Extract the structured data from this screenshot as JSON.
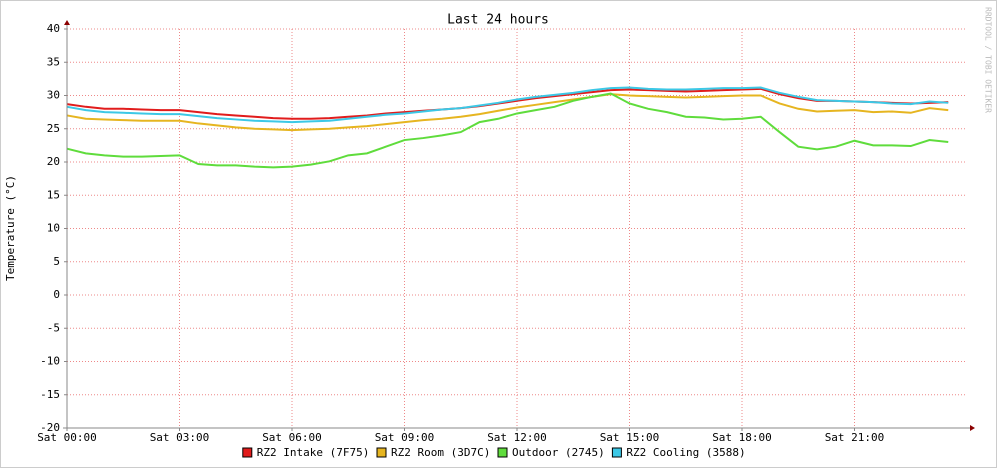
{
  "chart_data": {
    "type": "line",
    "title": "Last 24 hours",
    "ylabel": "Temperature (°C)",
    "watermark": "RRDTOOL / TOBI OETIKER",
    "grid": true,
    "xlim": [
      0,
      24
    ],
    "xticks": [
      {
        "value": 0,
        "label": "Sat 00:00"
      },
      {
        "value": 3,
        "label": "Sat 03:00"
      },
      {
        "value": 6,
        "label": "Sat 06:00"
      },
      {
        "value": 9,
        "label": "Sat 09:00"
      },
      {
        "value": 12,
        "label": "Sat 12:00"
      },
      {
        "value": 15,
        "label": "Sat 15:00"
      },
      {
        "value": 18,
        "label": "Sat 18:00"
      },
      {
        "value": 21,
        "label": "Sat 21:00"
      }
    ],
    "ylim": [
      -20,
      40
    ],
    "yticks": [
      -20,
      -15,
      -10,
      -5,
      0,
      5,
      10,
      15,
      20,
      25,
      30,
      35,
      40
    ],
    "x": [
      0,
      0.5,
      1,
      1.5,
      2,
      2.5,
      3,
      3.5,
      4,
      4.5,
      5,
      5.5,
      6,
      6.5,
      7,
      7.5,
      8,
      8.5,
      9,
      9.5,
      10,
      10.5,
      11,
      11.5,
      12,
      12.5,
      13,
      13.5,
      14,
      14.5,
      15,
      15.5,
      16,
      16.5,
      17,
      17.5,
      18,
      18.5,
      19,
      19.5,
      20,
      20.5,
      21,
      21.5,
      22,
      22.5,
      23,
      23.5
    ],
    "series": [
      {
        "name": "RZ2 Intake (7F75)",
        "color": "#e11c1c",
        "values": [
          28.7,
          28.3,
          28.0,
          28.0,
          27.9,
          27.8,
          27.8,
          27.5,
          27.2,
          27.0,
          26.8,
          26.6,
          26.5,
          26.5,
          26.6,
          26.8,
          27.0,
          27.3,
          27.5,
          27.7,
          27.9,
          28.1,
          28.4,
          28.8,
          29.2,
          29.6,
          29.9,
          30.2,
          30.5,
          30.8,
          30.9,
          30.8,
          30.7,
          30.6,
          30.7,
          30.8,
          30.9,
          31.0,
          30.2,
          29.6,
          29.2,
          29.2,
          29.1,
          29.0,
          28.9,
          28.8,
          28.9,
          29.0
        ]
      },
      {
        "name": "RZ2 Room (3D7C)",
        "color": "#e6b520",
        "values": [
          27.0,
          26.5,
          26.4,
          26.3,
          26.2,
          26.2,
          26.2,
          25.8,
          25.5,
          25.2,
          25.0,
          24.9,
          24.8,
          24.9,
          25.0,
          25.2,
          25.4,
          25.7,
          26.0,
          26.3,
          26.5,
          26.8,
          27.2,
          27.7,
          28.2,
          28.6,
          29.0,
          29.4,
          29.8,
          30.2,
          30.0,
          29.9,
          29.8,
          29.7,
          29.8,
          29.9,
          30.0,
          30.0,
          28.8,
          28.0,
          27.6,
          27.7,
          27.8,
          27.5,
          27.6,
          27.4,
          28.1,
          27.8
        ]
      },
      {
        "name": "Outdoor (2745)",
        "color": "#5fdc3c",
        "values": [
          22.0,
          21.3,
          21.0,
          20.8,
          20.8,
          20.9,
          21.0,
          19.7,
          19.5,
          19.5,
          19.3,
          19.2,
          19.3,
          19.6,
          20.1,
          21.0,
          21.3,
          22.3,
          23.3,
          23.6,
          24.0,
          24.5,
          26.0,
          26.5,
          27.3,
          27.8,
          28.3,
          29.2,
          29.8,
          30.3,
          28.8,
          28.0,
          27.5,
          26.8,
          26.7,
          26.4,
          26.5,
          26.8,
          24.5,
          22.3,
          21.9,
          22.3,
          23.2,
          22.5,
          22.5,
          22.4,
          23.3,
          23.0
        ]
      },
      {
        "name": "RZ2 Cooling (3588)",
        "color": "#3cc8e6",
        "values": [
          28.3,
          27.8,
          27.5,
          27.4,
          27.3,
          27.2,
          27.2,
          26.9,
          26.6,
          26.4,
          26.2,
          26.1,
          26.0,
          26.1,
          26.2,
          26.5,
          26.8,
          27.1,
          27.3,
          27.6,
          27.9,
          28.1,
          28.5,
          28.9,
          29.4,
          29.8,
          30.1,
          30.4,
          30.8,
          31.1,
          31.2,
          31.0,
          30.9,
          30.9,
          31.0,
          31.1,
          31.1,
          31.2,
          30.4,
          29.8,
          29.3,
          29.2,
          29.1,
          29.0,
          28.8,
          28.7,
          29.1,
          28.9
        ]
      }
    ]
  }
}
